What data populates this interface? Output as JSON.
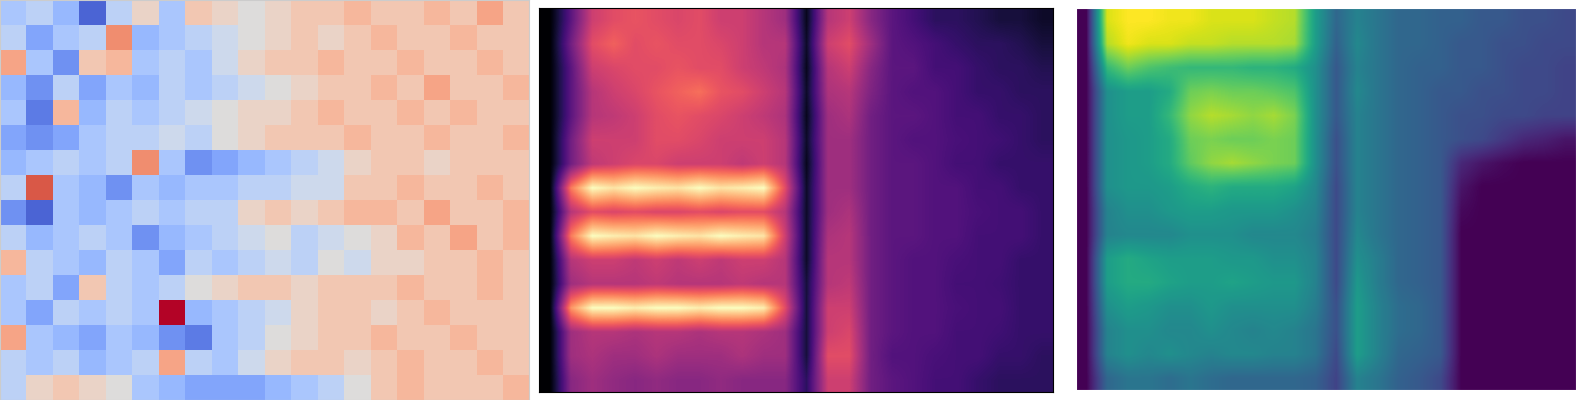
{
  "chart_data": [
    {
      "type": "heatmap",
      "color": "coolwarm",
      "tick_labels": false,
      "cells": [
        [
          -0.3,
          -0.2,
          -0.4,
          -0.8,
          -0.2,
          0.1,
          -0.3,
          0.2,
          0.1,
          0.0,
          0.1,
          0.2,
          0.2,
          0.3,
          0.2,
          0.2,
          0.3,
          0.2,
          0.4,
          0.2
        ],
        [
          -0.2,
          -0.5,
          -0.3,
          -0.2,
          0.5,
          -0.4,
          -0.3,
          -0.2,
          -0.1,
          0.0,
          0.1,
          0.2,
          0.1,
          0.2,
          0.3,
          0.2,
          0.2,
          0.3,
          0.2,
          0.2
        ],
        [
          0.4,
          -0.3,
          -0.6,
          0.2,
          0.3,
          -0.3,
          -0.2,
          -0.3,
          -0.1,
          0.1,
          0.2,
          0.2,
          0.3,
          0.2,
          0.2,
          0.3,
          0.2,
          0.2,
          0.3,
          0.2
        ],
        [
          -0.4,
          -0.6,
          -0.2,
          -0.5,
          -0.3,
          -0.4,
          -0.2,
          -0.3,
          -0.2,
          -0.1,
          0.0,
          0.1,
          0.2,
          0.2,
          0.3,
          0.2,
          0.4,
          0.2,
          0.2,
          0.3
        ],
        [
          -0.3,
          -0.7,
          0.3,
          -0.4,
          -0.2,
          -0.3,
          -0.2,
          -0.1,
          0.0,
          0.1,
          0.1,
          0.2,
          0.3,
          0.2,
          0.2,
          0.3,
          0.2,
          0.3,
          0.2,
          0.2
        ],
        [
          -0.5,
          -0.6,
          -0.5,
          -0.3,
          -0.2,
          -0.2,
          -0.1,
          -0.2,
          0.0,
          0.1,
          0.2,
          0.2,
          0.2,
          0.3,
          0.2,
          0.2,
          0.3,
          0.2,
          0.2,
          0.3
        ],
        [
          -0.4,
          -0.3,
          -0.2,
          -0.3,
          -0.2,
          0.5,
          -0.3,
          -0.6,
          -0.5,
          -0.4,
          -0.3,
          -0.2,
          -0.1,
          0.1,
          0.2,
          0.2,
          0.1,
          0.2,
          0.2,
          0.2
        ],
        [
          -0.2,
          0.7,
          -0.3,
          -0.4,
          -0.6,
          -0.3,
          -0.4,
          -0.3,
          -0.3,
          -0.2,
          -0.2,
          -0.1,
          -0.1,
          0.2,
          0.2,
          0.3,
          0.2,
          0.2,
          0.3,
          0.2
        ],
        [
          -0.6,
          -0.8,
          -0.3,
          -0.4,
          -0.3,
          -0.2,
          -0.3,
          -0.2,
          -0.2,
          0.1,
          0.2,
          0.1,
          0.2,
          0.3,
          0.3,
          0.2,
          0.4,
          0.2,
          0.2,
          0.3
        ],
        [
          -0.2,
          -0.4,
          -0.3,
          -0.2,
          -0.3,
          -0.6,
          -0.4,
          -0.3,
          -0.2,
          -0.1,
          0.0,
          -0.2,
          -0.1,
          0.0,
          0.1,
          0.3,
          0.2,
          0.4,
          0.2,
          0.3
        ],
        [
          0.3,
          -0.2,
          -0.3,
          -0.4,
          -0.2,
          -0.3,
          -0.5,
          -0.2,
          -0.3,
          -0.2,
          -0.1,
          -0.2,
          0.0,
          -0.1,
          0.1,
          0.1,
          0.2,
          0.2,
          0.3,
          0.2
        ],
        [
          -0.3,
          -0.2,
          -0.5,
          0.2,
          -0.2,
          -0.3,
          -0.2,
          0.0,
          0.1,
          0.2,
          0.2,
          0.1,
          0.2,
          0.2,
          0.2,
          0.3,
          0.2,
          0.2,
          0.3,
          0.2
        ],
        [
          -0.3,
          -0.5,
          -0.2,
          -0.3,
          -0.2,
          -0.3,
          0.9,
          -0.4,
          -0.3,
          -0.2,
          -0.1,
          0.1,
          0.2,
          0.2,
          0.1,
          0.2,
          0.3,
          0.2,
          0.2,
          0.2
        ],
        [
          0.4,
          -0.3,
          -0.4,
          -0.5,
          -0.3,
          -0.4,
          -0.6,
          -0.7,
          -0.3,
          -0.2,
          0.0,
          0.1,
          0.2,
          0.2,
          0.3,
          0.2,
          0.2,
          0.3,
          0.2,
          0.2
        ],
        [
          -0.2,
          -0.3,
          -0.2,
          -0.4,
          -0.3,
          -0.2,
          0.4,
          -0.2,
          -0.3,
          -0.1,
          0.1,
          0.2,
          0.2,
          0.1,
          0.2,
          0.3,
          0.2,
          0.2,
          0.3,
          0.2
        ],
        [
          -0.2,
          0.1,
          0.2,
          0.1,
          0.0,
          -0.3,
          -0.4,
          -0.5,
          -0.5,
          -0.5,
          -0.4,
          -0.3,
          -0.2,
          0.0,
          0.2,
          0.3,
          0.2,
          0.2,
          0.2,
          0.3
        ]
      ]
    },
    {
      "type": "heatmap",
      "color": "magma",
      "tick_labels": false,
      "cells": [
        [
          0.05,
          0.3,
          0.55,
          0.6,
          0.62,
          0.6,
          0.58,
          0.6,
          0.55,
          0.55,
          0.5,
          0.45,
          0.1,
          0.5,
          0.55,
          0.4,
          0.3,
          0.25,
          0.2,
          0.2,
          0.18,
          0.15,
          0.15,
          0.12
        ],
        [
          0.05,
          0.35,
          0.6,
          0.65,
          0.6,
          0.62,
          0.6,
          0.6,
          0.58,
          0.55,
          0.5,
          0.5,
          0.12,
          0.55,
          0.6,
          0.45,
          0.3,
          0.28,
          0.25,
          0.22,
          0.2,
          0.2,
          0.18,
          0.15
        ],
        [
          0.05,
          0.3,
          0.55,
          0.58,
          0.6,
          0.6,
          0.62,
          0.6,
          0.6,
          0.55,
          0.52,
          0.48,
          0.1,
          0.5,
          0.55,
          0.4,
          0.3,
          0.3,
          0.25,
          0.25,
          0.22,
          0.2,
          0.2,
          0.18
        ],
        [
          0.05,
          0.3,
          0.5,
          0.55,
          0.58,
          0.62,
          0.65,
          0.68,
          0.62,
          0.6,
          0.55,
          0.5,
          0.12,
          0.48,
          0.5,
          0.38,
          0.3,
          0.28,
          0.28,
          0.25,
          0.22,
          0.22,
          0.2,
          0.2
        ],
        [
          0.05,
          0.3,
          0.5,
          0.52,
          0.55,
          0.6,
          0.62,
          0.6,
          0.58,
          0.55,
          0.52,
          0.48,
          0.1,
          0.45,
          0.48,
          0.35,
          0.3,
          0.3,
          0.28,
          0.25,
          0.25,
          0.22,
          0.22,
          0.2
        ],
        [
          0.05,
          0.35,
          0.55,
          0.55,
          0.55,
          0.6,
          0.6,
          0.58,
          0.55,
          0.55,
          0.55,
          0.5,
          0.12,
          0.45,
          0.45,
          0.35,
          0.3,
          0.28,
          0.28,
          0.26,
          0.25,
          0.24,
          0.22,
          0.2
        ],
        [
          0.05,
          0.35,
          0.52,
          0.55,
          0.58,
          0.58,
          0.55,
          0.55,
          0.55,
          0.52,
          0.55,
          0.5,
          0.1,
          0.45,
          0.45,
          0.35,
          0.3,
          0.3,
          0.28,
          0.25,
          0.25,
          0.22,
          0.22,
          0.22
        ],
        [
          0.05,
          0.7,
          0.95,
          0.9,
          0.95,
          0.92,
          0.9,
          0.95,
          0.9,
          0.92,
          0.95,
          0.6,
          0.12,
          0.45,
          0.45,
          0.35,
          0.3,
          0.3,
          0.28,
          0.28,
          0.25,
          0.25,
          0.22,
          0.22
        ],
        [
          0.05,
          0.5,
          0.6,
          0.58,
          0.6,
          0.58,
          0.58,
          0.6,
          0.58,
          0.6,
          0.6,
          0.5,
          0.12,
          0.45,
          0.48,
          0.35,
          0.3,
          0.3,
          0.28,
          0.28,
          0.26,
          0.25,
          0.25,
          0.22
        ],
        [
          0.05,
          0.7,
          0.95,
          0.92,
          0.9,
          0.95,
          0.92,
          0.9,
          0.95,
          0.92,
          0.9,
          0.55,
          0.12,
          0.48,
          0.5,
          0.35,
          0.3,
          0.3,
          0.28,
          0.28,
          0.25,
          0.25,
          0.25,
          0.22
        ],
        [
          0.05,
          0.5,
          0.55,
          0.55,
          0.52,
          0.55,
          0.52,
          0.55,
          0.52,
          0.55,
          0.55,
          0.5,
          0.12,
          0.5,
          0.5,
          0.35,
          0.3,
          0.28,
          0.28,
          0.26,
          0.25,
          0.25,
          0.22,
          0.22
        ],
        [
          0.05,
          0.45,
          0.5,
          0.5,
          0.5,
          0.52,
          0.5,
          0.5,
          0.5,
          0.52,
          0.5,
          0.5,
          0.15,
          0.5,
          0.52,
          0.35,
          0.3,
          0.28,
          0.28,
          0.25,
          0.25,
          0.24,
          0.22,
          0.22
        ],
        [
          0.05,
          0.75,
          0.95,
          0.95,
          0.92,
          0.95,
          0.95,
          0.92,
          0.95,
          0.95,
          0.92,
          0.6,
          0.15,
          0.55,
          0.55,
          0.35,
          0.3,
          0.28,
          0.28,
          0.26,
          0.25,
          0.25,
          0.22,
          0.22
        ],
        [
          0.05,
          0.45,
          0.5,
          0.5,
          0.48,
          0.5,
          0.5,
          0.48,
          0.5,
          0.5,
          0.48,
          0.45,
          0.15,
          0.55,
          0.58,
          0.35,
          0.3,
          0.28,
          0.28,
          0.25,
          0.25,
          0.24,
          0.22,
          0.22
        ],
        [
          0.05,
          0.45,
          0.48,
          0.45,
          0.45,
          0.48,
          0.45,
          0.45,
          0.45,
          0.48,
          0.45,
          0.45,
          0.15,
          0.6,
          0.6,
          0.35,
          0.28,
          0.28,
          0.26,
          0.25,
          0.25,
          0.22,
          0.22,
          0.2
        ],
        [
          0.05,
          0.4,
          0.45,
          0.42,
          0.4,
          0.42,
          0.4,
          0.4,
          0.42,
          0.4,
          0.4,
          0.4,
          0.2,
          0.55,
          0.55,
          0.35,
          0.3,
          0.28,
          0.25,
          0.25,
          0.22,
          0.2,
          0.2,
          0.2
        ]
      ]
    },
    {
      "type": "heatmap",
      "color": "viridis",
      "tick_labels": false,
      "cells": [
        [
          0,
          0.85,
          0.9,
          0.9,
          0.88,
          0.88,
          0.85,
          0.85,
          0.85,
          0.82,
          0.8,
          0.5,
          0.3,
          0.4,
          0.35,
          0.3,
          0.3,
          0.28,
          0.28,
          0.25,
          0.25,
          0.22,
          0.22,
          0.2
        ],
        [
          0,
          0.8,
          0.88,
          0.85,
          0.85,
          0.82,
          0.82,
          0.8,
          0.8,
          0.8,
          0.78,
          0.5,
          0.28,
          0.42,
          0.35,
          0.3,
          0.3,
          0.28,
          0.25,
          0.25,
          0.22,
          0.22,
          0.2,
          0.2
        ],
        [
          0,
          0.6,
          0.7,
          0.65,
          0.62,
          0.6,
          0.6,
          0.6,
          0.58,
          0.58,
          0.55,
          0.45,
          0.25,
          0.4,
          0.35,
          0.3,
          0.28,
          0.28,
          0.25,
          0.25,
          0.22,
          0.2,
          0.2,
          0.18
        ],
        [
          0,
          0.45,
          0.5,
          0.5,
          0.55,
          0.7,
          0.72,
          0.7,
          0.7,
          0.68,
          0.65,
          0.45,
          0.25,
          0.42,
          0.35,
          0.3,
          0.28,
          0.25,
          0.25,
          0.22,
          0.22,
          0.2,
          0.2,
          0.18
        ],
        [
          0,
          0.45,
          0.5,
          0.5,
          0.6,
          0.75,
          0.8,
          0.78,
          0.75,
          0.78,
          0.72,
          0.45,
          0.25,
          0.4,
          0.35,
          0.3,
          0.28,
          0.25,
          0.22,
          0.22,
          0.2,
          0.2,
          0.18,
          0.18
        ],
        [
          0,
          0.45,
          0.48,
          0.5,
          0.55,
          0.7,
          0.72,
          0.7,
          0.7,
          0.72,
          0.7,
          0.45,
          0.22,
          0.4,
          0.35,
          0.3,
          0.28,
          0.25,
          0.22,
          0.2,
          0.15,
          0.1,
          0.08,
          0.05
        ],
        [
          0,
          0.45,
          0.48,
          0.5,
          0.55,
          0.68,
          0.75,
          0.78,
          0.75,
          0.72,
          0.7,
          0.45,
          0.22,
          0.4,
          0.35,
          0.3,
          0.28,
          0.25,
          0.1,
          0.05,
          0.02,
          0,
          0,
          0
        ],
        [
          0,
          0.45,
          0.48,
          0.48,
          0.5,
          0.55,
          0.58,
          0.55,
          0.55,
          0.55,
          0.52,
          0.42,
          0.2,
          0.4,
          0.35,
          0.3,
          0.28,
          0.25,
          0.05,
          0,
          0,
          0,
          0,
          0
        ],
        [
          0,
          0.4,
          0.45,
          0.45,
          0.48,
          0.5,
          0.5,
          0.48,
          0.48,
          0.48,
          0.45,
          0.4,
          0.2,
          0.4,
          0.35,
          0.3,
          0.28,
          0.25,
          0.02,
          0,
          0,
          0,
          0,
          0
        ],
        [
          0,
          0.4,
          0.42,
          0.42,
          0.42,
          0.45,
          0.45,
          0.45,
          0.42,
          0.42,
          0.42,
          0.38,
          0.2,
          0.42,
          0.35,
          0.3,
          0.28,
          0.25,
          0,
          0,
          0,
          0,
          0,
          0
        ],
        [
          0,
          0.5,
          0.55,
          0.52,
          0.5,
          0.5,
          0.5,
          0.48,
          0.48,
          0.45,
          0.45,
          0.4,
          0.2,
          0.45,
          0.38,
          0.3,
          0.28,
          0.25,
          0,
          0,
          0,
          0,
          0,
          0
        ],
        [
          0,
          0.5,
          0.55,
          0.55,
          0.52,
          0.5,
          0.5,
          0.52,
          0.5,
          0.48,
          0.48,
          0.4,
          0.2,
          0.48,
          0.38,
          0.3,
          0.28,
          0.25,
          0,
          0,
          0,
          0,
          0,
          0
        ],
        [
          0,
          0.45,
          0.5,
          0.48,
          0.45,
          0.45,
          0.48,
          0.45,
          0.45,
          0.45,
          0.45,
          0.38,
          0.22,
          0.5,
          0.4,
          0.32,
          0.3,
          0.25,
          0,
          0,
          0,
          0,
          0,
          0
        ],
        [
          0,
          0.4,
          0.45,
          0.45,
          0.42,
          0.42,
          0.45,
          0.42,
          0.4,
          0.42,
          0.4,
          0.35,
          0.22,
          0.5,
          0.4,
          0.32,
          0.3,
          0.25,
          0,
          0,
          0,
          0,
          0,
          0
        ],
        [
          0,
          0.4,
          0.45,
          0.42,
          0.45,
          0.42,
          0.4,
          0.42,
          0.42,
          0.4,
          0.4,
          0.35,
          0.2,
          0.5,
          0.4,
          0.3,
          0.28,
          0.25,
          0,
          0,
          0,
          0,
          0,
          0
        ],
        [
          0,
          0.3,
          0.35,
          0.35,
          0.32,
          0.35,
          0.32,
          0.3,
          0.3,
          0.3,
          0.3,
          0.28,
          0.18,
          0.4,
          0.35,
          0.28,
          0.25,
          0.2,
          0,
          0,
          0,
          0,
          0,
          0
        ]
      ]
    }
  ]
}
